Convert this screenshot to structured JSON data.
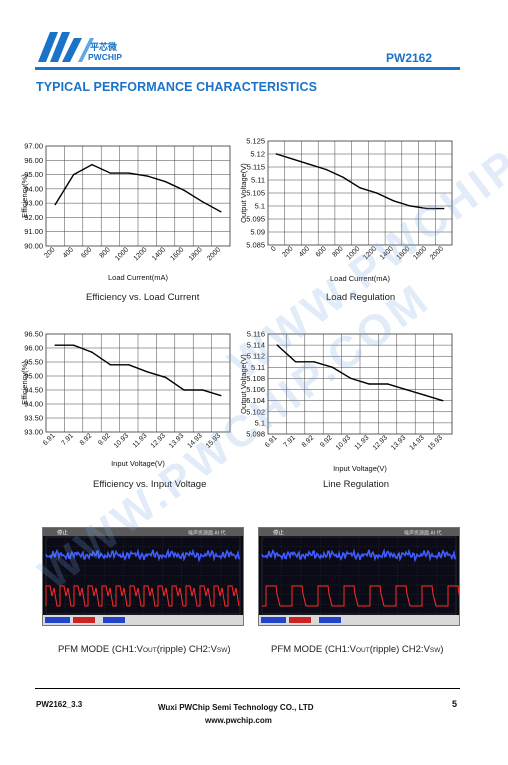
{
  "header": {
    "logo_cn": "平芯微",
    "logo_en": "PWCHIP",
    "part": "PW2162"
  },
  "section_title": "TYPICAL PERFORMANCE CHARACTERISTICS",
  "watermark": "WWW.PWCHIP.COM",
  "charts": {
    "eff_load": {
      "ylabel": "Efficiency(%)",
      "xlabel": "Load Current(mA)",
      "caption": "Efficiency vs. Load Current"
    },
    "load_reg": {
      "ylabel": "Output Voltage(V)",
      "xlabel": "Load Current(mA)",
      "caption": "Load Regulation"
    },
    "eff_vin": {
      "ylabel": "Efficiency(%)",
      "xlabel": "Input Voltage(V)",
      "caption": "Efficiency vs. Input Voltage"
    },
    "line_reg": {
      "ylabel": "Output Voltage(V)",
      "xlabel": "Input Voltage(V)",
      "caption": "Line Regulation"
    }
  },
  "chart_data": [
    {
      "type": "line",
      "xlabel": "Load Current(mA)",
      "ylabel": "Efficiency(%)",
      "x": [
        200,
        400,
        600,
        800,
        1000,
        1200,
        1400,
        1600,
        1800,
        2000
      ],
      "values": [
        92.9,
        95.0,
        95.7,
        95.1,
        95.1,
        94.9,
        94.5,
        93.9,
        93.1,
        92.4
      ],
      "yticks": [
        "97.00",
        "96.00",
        "95.00",
        "94.00",
        "93.00",
        "92.00",
        "91.00",
        "90.00"
      ],
      "ylim": [
        90,
        97
      ]
    },
    {
      "type": "line",
      "xlabel": "Load Current(mA)",
      "ylabel": "Output Voltage(V)",
      "x": [
        0,
        200,
        400,
        600,
        800,
        1000,
        1200,
        1400,
        1600,
        1800,
        2000
      ],
      "values": [
        5.12,
        5.118,
        5.116,
        5.114,
        5.111,
        5.107,
        5.105,
        5.102,
        5.1,
        5.099,
        5.099
      ],
      "yticks": [
        "5.125",
        "5.12",
        "5.115",
        "5.11",
        "5.105",
        "5.1",
        "5.095",
        "5.09",
        "5.085"
      ],
      "ylim": [
        5.085,
        5.125
      ]
    },
    {
      "type": "line",
      "xlabel": "Input Voltage(V)",
      "ylabel": "Efficiency(%)",
      "x": [
        "6.91",
        "7.91",
        "8.92",
        "9.92",
        "10.93",
        "11.93",
        "12.93",
        "13.93",
        "14.93",
        "15.93"
      ],
      "values": [
        96.1,
        96.1,
        95.85,
        95.4,
        95.4,
        95.15,
        94.95,
        94.5,
        94.5,
        94.3
      ],
      "yticks": [
        "96.50",
        "96.00",
        "95.50",
        "95.00",
        "94.50",
        "94.00",
        "93.50",
        "93.00"
      ],
      "ylim": [
        93,
        96.5
      ]
    },
    {
      "type": "line",
      "xlabel": "Input Voltage(V)",
      "ylabel": "Output Voltage(V)",
      "x": [
        "6.91",
        "7.91",
        "8.92",
        "9.92",
        "10.93",
        "11.93",
        "12.93",
        "13.93",
        "14.93",
        "15.93"
      ],
      "values": [
        5.114,
        5.111,
        5.111,
        5.11,
        5.108,
        5.107,
        5.107,
        5.106,
        5.105,
        5.104
      ],
      "yticks": [
        "5.116",
        "5.114",
        "5.112",
        "5.11",
        "5.108",
        "5.106",
        "5.104",
        "5.102",
        "5.1",
        "5.098"
      ],
      "ylim": [
        5.098,
        5.116
      ]
    }
  ],
  "scopes": [
    {
      "status": "停止",
      "title": "噪声资源面 AI 代",
      "caption_prefix": "PFM MODE (CH1:V",
      "caption_sub1": "OUT",
      "caption_mid": "(ripple) CH2:V",
      "caption_sub2": "SW",
      "caption_end": ")"
    },
    {
      "status": "停止",
      "title": "噪声资源面 AI 代",
      "caption_prefix": "PFM MODE (CH1:V",
      "caption_sub1": "OUT",
      "caption_mid": "(ripple) CH2:V",
      "caption_sub2": "SW",
      "caption_end": ")"
    }
  ],
  "footer": {
    "doc": "PW2162_3.3",
    "company": "Wuxi PWChip Semi Technology CO., LTD",
    "web": "www.pwchip.com",
    "page": "5"
  },
  "colors": {
    "brand": "#1a73c9",
    "ch1": "#3f5bff",
    "ch2": "#ff2a2a"
  }
}
